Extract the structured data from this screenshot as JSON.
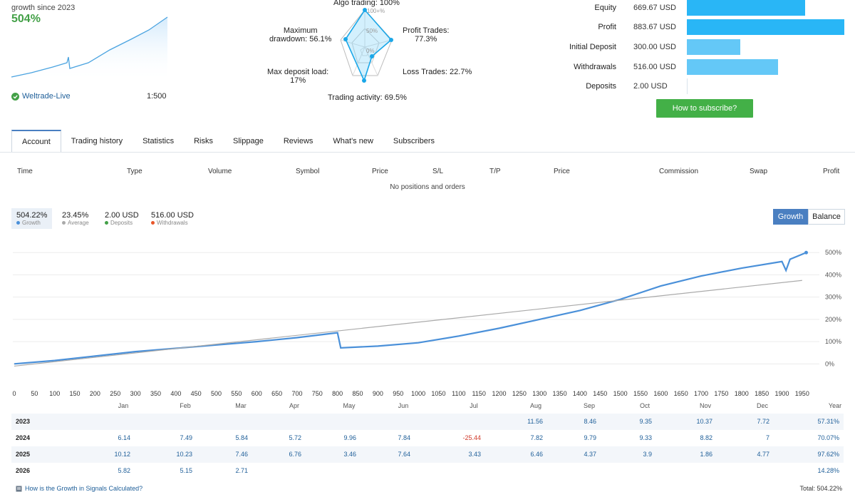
{
  "summary": {
    "growth_since_label": "growth since 2023",
    "growth_pct": "504%",
    "account": "Weltrade-Live",
    "leverage": "1:500"
  },
  "radar": {
    "algo_trading": "Algo trading: 100%",
    "profit_trades_1": "Profit Trades:",
    "profit_trades_2": "77.3%",
    "loss_trades": "Loss Trades: 22.7%",
    "trading_activity": "Trading activity: 69.5%",
    "max_deposit_load_1": "Max deposit load:",
    "max_deposit_load_2": "17%",
    "max_drawdown_1": "Maximum",
    "max_drawdown_2": "drawdown: 56.1%",
    "ring_100": "100+%",
    "ring_50": "50%",
    "ring_0": "0%"
  },
  "stats": [
    {
      "label": "Equity",
      "value": "669.67 USD",
      "fraction": 0.75,
      "color": "#29b6f6"
    },
    {
      "label": "Profit",
      "value": "883.67 USD",
      "fraction": 1.0,
      "color": "#29b6f6"
    },
    {
      "label": "Initial Deposit",
      "value": "300.00 USD",
      "fraction": 0.34,
      "color": "#64c8f7"
    },
    {
      "label": "Withdrawals",
      "value": "516.00 USD",
      "fraction": 0.58,
      "color": "#64c8f7"
    },
    {
      "label": "Deposits",
      "value": "2.00 USD",
      "fraction": 0.0,
      "color": "#64c8f7"
    }
  ],
  "subscribe_label": "How to subscribe?",
  "tabs": [
    "Account",
    "Trading history",
    "Statistics",
    "Risks",
    "Slippage",
    "Reviews",
    "What's new",
    "Subscribers"
  ],
  "positions": {
    "headers": [
      "Time",
      "Type",
      "Volume",
      "Symbol",
      "Price",
      "S/L",
      "T/P",
      "Price",
      "Commission",
      "Swap",
      "Profit"
    ],
    "empty": "No positions and orders"
  },
  "chart_summary": [
    {
      "value": "504.22%",
      "label": "Growth",
      "color": "#4a90d9"
    },
    {
      "value": "23.45%",
      "label": "Average",
      "color": "#aaaaaa"
    },
    {
      "value": "2.00 USD",
      "label": "Deposits",
      "color": "#43a047"
    },
    {
      "value": "516.00 USD",
      "label": "Withdrawals",
      "color": "#e8562a"
    }
  ],
  "chart_toggle": {
    "growth": "Growth",
    "balance": "Balance"
  },
  "chart_data": {
    "type": "line",
    "x_ticks": [
      0,
      50,
      100,
      150,
      200,
      250,
      300,
      350,
      400,
      450,
      500,
      550,
      600,
      650,
      700,
      750,
      800,
      850,
      900,
      950,
      1000,
      1050,
      1100,
      1150,
      1200,
      1250,
      1300,
      1350,
      1400,
      1450,
      1500,
      1550,
      1600,
      1650,
      1700,
      1750,
      1800,
      1850,
      1900,
      1950
    ],
    "y_ticks": [
      "500%",
      "400%",
      "300%",
      "200%",
      "100%",
      "0%"
    ],
    "xlim": [
      0,
      1975
    ],
    "ylim": [
      -15,
      520
    ],
    "series": [
      {
        "color": "#4a90d9",
        "x": [
          0,
          100,
          200,
          300,
          400,
          500,
          600,
          700,
          800,
          808,
          900,
          1000,
          1100,
          1200,
          1300,
          1400,
          1500,
          1600,
          1700,
          1800,
          1900,
          1910,
          1920,
          1960
        ],
        "y": [
          0,
          15,
          35,
          55,
          70,
          85,
          100,
          118,
          140,
          72,
          80,
          95,
          125,
          160,
          200,
          240,
          290,
          350,
          395,
          430,
          460,
          420,
          470,
          500
        ]
      },
      {
        "color": "#aaaaaa",
        "x": [
          0,
          1950
        ],
        "y": [
          -10,
          375
        ]
      }
    ],
    "grid": true
  },
  "yearly": {
    "months": [
      "Jan",
      "Feb",
      "Mar",
      "Apr",
      "May",
      "Jun",
      "Jul",
      "Aug",
      "Sep",
      "Oct",
      "Nov",
      "Dec"
    ],
    "year_label": "Year",
    "rows": [
      {
        "year": "2023",
        "values": [
          "",
          "",
          "",
          "",
          "",
          "",
          "",
          "11.56",
          "8.46",
          "9.35",
          "10.37",
          "7.72"
        ],
        "total": "57.31%"
      },
      {
        "year": "2024",
        "values": [
          "6.14",
          "7.49",
          "5.84",
          "5.72",
          "9.96",
          "7.84",
          "-25.44",
          "7.82",
          "9.79",
          "9.33",
          "8.82",
          "7"
        ],
        "total": "70.07%"
      },
      {
        "year": "2025",
        "values": [
          "10.12",
          "10.23",
          "7.46",
          "6.76",
          "3.46",
          "7.64",
          "3.43",
          "6.46",
          "4.37",
          "3.9",
          "1.86",
          "4.77"
        ],
        "total": "97.62%"
      },
      {
        "year": "2026",
        "values": [
          "5.82",
          "5.15",
          "2.71",
          "",
          "",
          "",
          "",
          "",
          "",
          "",
          "",
          ""
        ],
        "total": "14.28%"
      }
    ]
  },
  "footer": {
    "link": "How is the Growth in Signals Calculated?",
    "total": "Total: 504.22%"
  }
}
